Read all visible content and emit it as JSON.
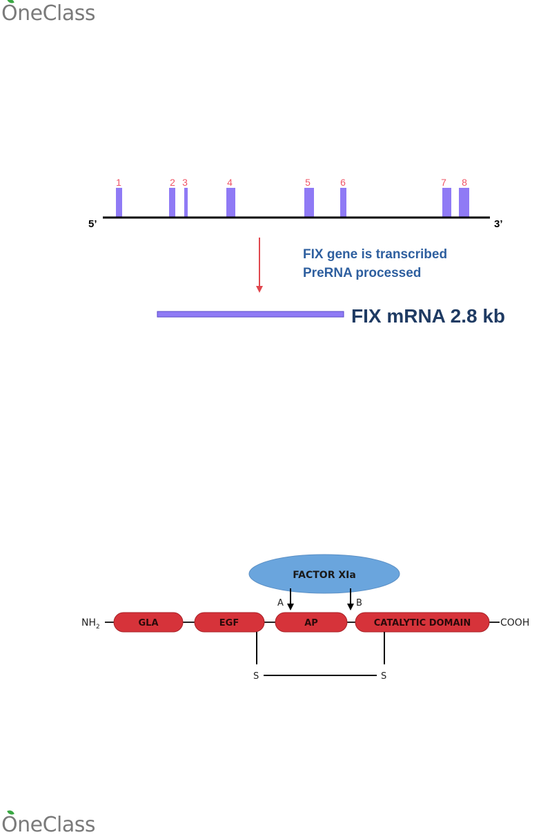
{
  "brand": {
    "logo_text": "OneClass",
    "leaf_color": "#3aa843"
  },
  "gene_diagram": {
    "exon_labels": [
      "1",
      "2",
      "3",
      "4",
      "5",
      "6",
      "7",
      "8"
    ],
    "five_prime": "5’",
    "three_prime": "3’",
    "process_line1": "FIX gene is transcribed",
    "process_line2": "PreRNA processed",
    "mrna_label": "FIX mRNA 2.8 kb",
    "colors": {
      "exon": "#8f7af5",
      "exon_label": "#ef5466",
      "arrow": "#e0474e",
      "process_text": "#2e5f9f",
      "mrna_text": "#1f3b63"
    }
  },
  "protein_diagram": {
    "enzyme_label": "FACTOR XIa",
    "cleavage_a": "A",
    "cleavage_b": "B",
    "n_terminus": "NH",
    "n_terminus_sub": "2",
    "c_terminus": "COOH",
    "domains": [
      "GLA",
      "EGF",
      "AP",
      "CATALYTIC DOMAIN"
    ],
    "disulfide_left": "S",
    "disulfide_right": "S",
    "colors": {
      "domain": "#d6333a",
      "enzyme": "#6aa5dd"
    }
  }
}
